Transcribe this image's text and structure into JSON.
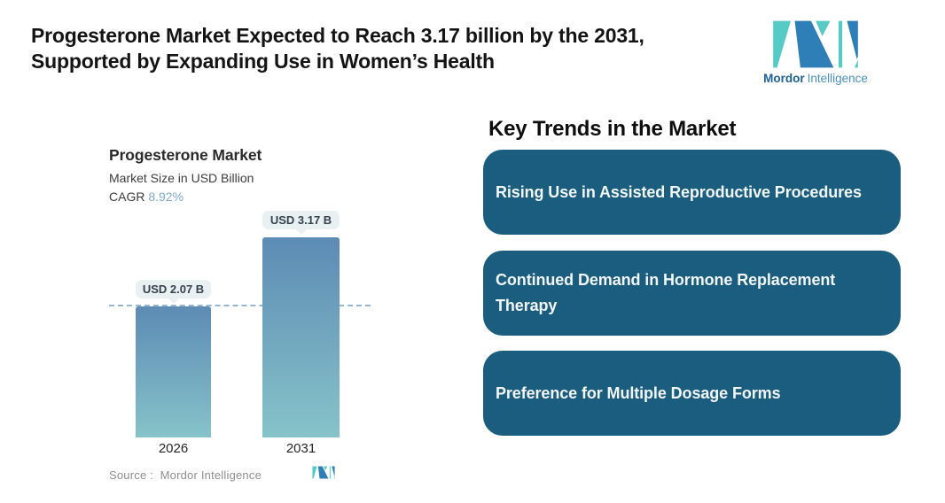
{
  "page": {
    "title_line1": "Progesterone Market Expected to Reach 3.17 billion by the 2031,",
    "title_line2": "Supported by Expanding Use in Women’s Health"
  },
  "brand": {
    "word_primary": "Mordor",
    "word_secondary": "Intelligence",
    "logo_teal": "#56CBC5",
    "logo_blue": "#2E7EB8"
  },
  "chart_data": {
    "type": "bar",
    "title": "Progesterone Market",
    "subtitle": "Market Size in USD Billion",
    "cagr_label": "CAGR",
    "cagr_value": "8.92%",
    "cagr_value_color": "#7FA9CD",
    "categories": [
      "2026",
      "2031"
    ],
    "values": [
      2.07,
      3.17
    ],
    "value_labels": [
      "USD 2.07 B",
      "USD 3.17 B"
    ],
    "unit": "USD Billion",
    "ylim": [
      0,
      3.17
    ],
    "grid": "off",
    "reference_value": 2.07,
    "reference_line_color": "#96B5CE",
    "bar_gradient_top": "#5D8BB4",
    "bar_gradient_bottom": "#86C3C9",
    "source_label": "Source :  Mordor Intelligence"
  },
  "trends": {
    "heading": "Key Trends in the Market",
    "card_color": "#1B5D7E",
    "items": [
      {
        "label": "Rising Use in Assisted Reproductive Procedures"
      },
      {
        "label": "Continued Demand in Hormone Replacement Therapy"
      },
      {
        "label": "Preference for Multiple Dosage Forms"
      }
    ]
  }
}
